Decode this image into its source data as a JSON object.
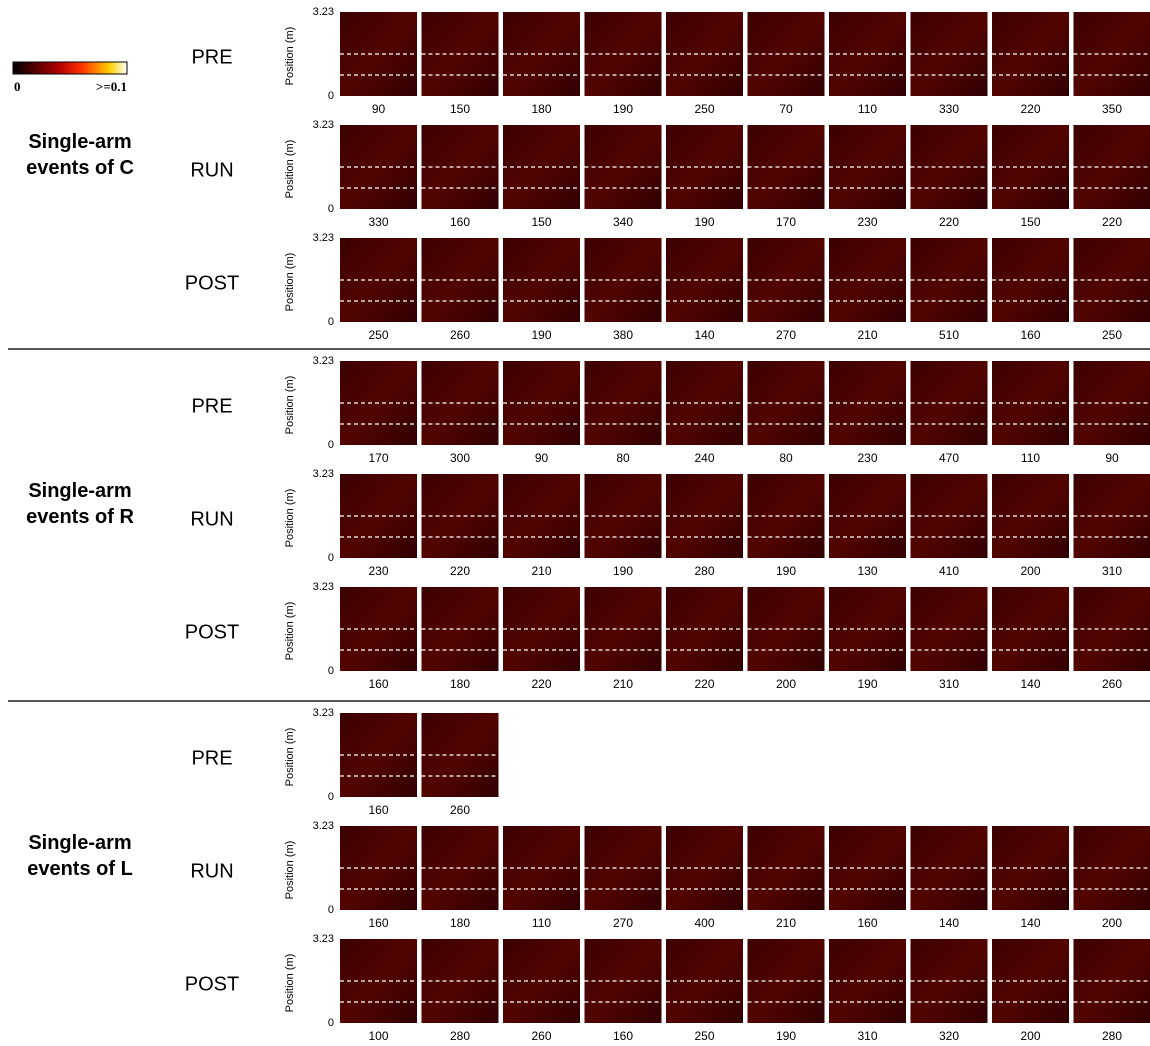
{
  "colorbar": {
    "min_label": "0",
    "max_label": ">=0.1"
  },
  "y_axis": {
    "label": "Position (m)",
    "top": "3.23",
    "bottom": "0"
  },
  "groups": [
    {
      "title": "Single-arm events of C",
      "rows": [
        {
          "label": "PRE",
          "panels": [
            90,
            150,
            180,
            190,
            250,
            70,
            110,
            330,
            220,
            350
          ]
        },
        {
          "label": "RUN",
          "panels": [
            330,
            160,
            150,
            340,
            190,
            170,
            230,
            220,
            150,
            220
          ]
        },
        {
          "label": "POST",
          "panels": [
            250,
            260,
            190,
            380,
            140,
            270,
            210,
            510,
            160,
            250
          ]
        }
      ]
    },
    {
      "title": "Single-arm events of R",
      "rows": [
        {
          "label": "PRE",
          "panels": [
            170,
            300,
            90,
            80,
            240,
            80,
            230,
            470,
            110,
            90
          ]
        },
        {
          "label": "RUN",
          "panels": [
            230,
            220,
            210,
            190,
            280,
            190,
            130,
            410,
            200,
            310
          ]
        },
        {
          "label": "POST",
          "panels": [
            160,
            180,
            220,
            210,
            220,
            200,
            190,
            310,
            140,
            260
          ]
        }
      ]
    },
    {
      "title": "Single-arm events of L",
      "rows": [
        {
          "label": "PRE",
          "panels": [
            160,
            260
          ]
        },
        {
          "label": "RUN",
          "panels": [
            160,
            180,
            110,
            270,
            400,
            210,
            160,
            140,
            140,
            200
          ]
        },
        {
          "label": "POST",
          "panels": [
            100,
            280,
            260,
            160,
            250,
            190,
            310,
            320,
            200,
            280
          ]
        }
      ]
    }
  ]
}
